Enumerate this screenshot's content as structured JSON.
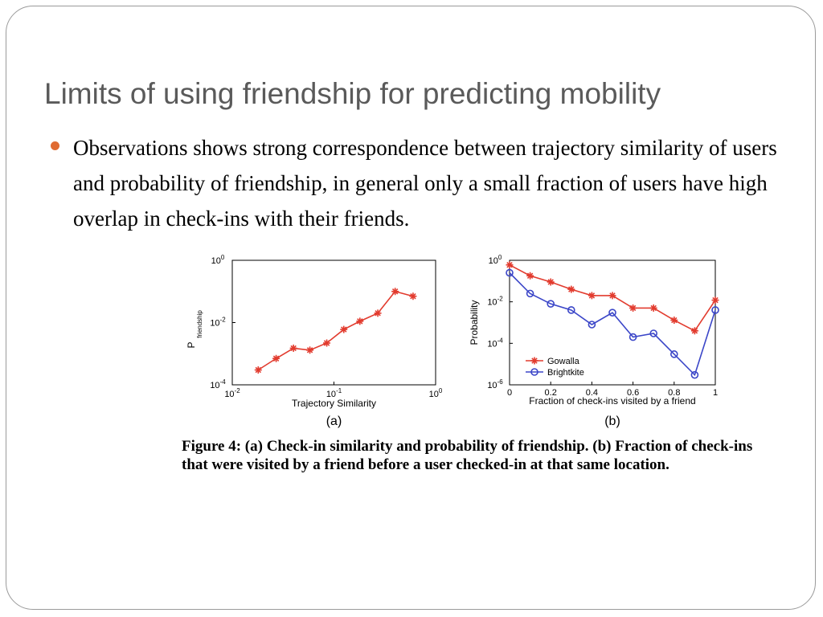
{
  "slide": {
    "title": "Limits of using friendship for predicting mobility",
    "bullet": "Observations shows strong correspondence between trajectory similarity of users and probability of friendship, in general only a small fraction of users have high overlap in check-ins with their friends."
  },
  "figure": {
    "caption": "Figure 4:  (a) Check-in similarity and probability of friendship. (b) Fraction of check-ins that were visited by a friend before a user checked-in at that same location."
  },
  "chart_data": [
    {
      "type": "line",
      "panel_label": "(a)",
      "xlabel": "Trajectory Similarity",
      "ylabel": "P",
      "ylabel_sub": "friendship",
      "xscale": "log",
      "yscale": "log",
      "xlim": [
        0.01,
        1
      ],
      "ylim": [
        0.0001,
        1
      ],
      "x_ticks": [
        "10",
        "10",
        "10"
      ],
      "x_tick_exp": [
        "-2",
        "-1",
        "0"
      ],
      "y_ticks": [
        "10",
        "10",
        "10"
      ],
      "y_tick_exp": [
        "-4",
        "-2",
        "0"
      ],
      "color": "#e23b2e",
      "marker": "star",
      "x": [
        0.018,
        0.027,
        0.04,
        0.058,
        0.085,
        0.125,
        0.18,
        0.27,
        0.4,
        0.6
      ],
      "y": [
        0.0003,
        0.0007,
        0.0015,
        0.0013,
        0.0022,
        0.006,
        0.011,
        0.02,
        0.1,
        0.07
      ]
    },
    {
      "type": "line",
      "panel_label": "(b)",
      "xlabel": "Fraction of check-ins visited by a friend",
      "ylabel": "Probability",
      "xscale": "linear",
      "yscale": "log",
      "xlim": [
        0,
        1
      ],
      "ylim": [
        1e-06,
        1
      ],
      "x_ticks": [
        "0",
        "0.2",
        "0.4",
        "0.6",
        "0.8",
        "1"
      ],
      "y_ticks": [
        "10",
        "10",
        "10",
        "10"
      ],
      "y_tick_exp": [
        "0",
        "-2",
        "-4",
        "-6"
      ],
      "legend": "lower-left",
      "x": [
        0,
        0.1,
        0.2,
        0.3,
        0.4,
        0.5,
        0.6,
        0.7,
        0.8,
        0.9,
        1.0
      ],
      "series": [
        {
          "name": "Gowalla",
          "color": "#e23b2e",
          "marker": "star",
          "values": [
            0.6,
            0.18,
            0.09,
            0.04,
            0.02,
            0.02,
            0.005,
            0.005,
            0.0013,
            0.0004,
            0.012
          ]
        },
        {
          "name": "Brightkite",
          "color": "#3b46c8",
          "marker": "circle",
          "values": [
            0.25,
            0.025,
            0.008,
            0.004,
            0.0008,
            0.003,
            0.0002,
            0.0003,
            3e-05,
            3e-06,
            0.004
          ]
        }
      ]
    }
  ]
}
